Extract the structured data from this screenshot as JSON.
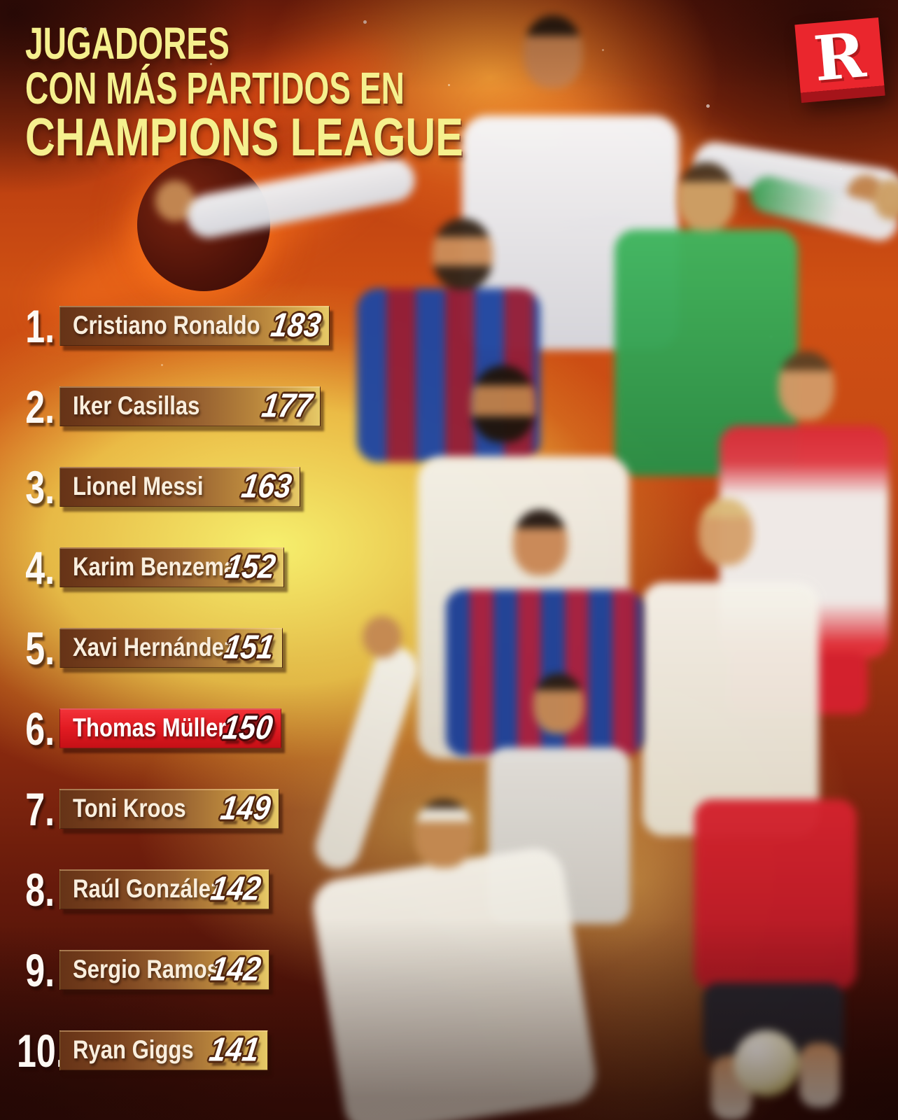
{
  "title": {
    "lines": [
      "JUGADORES",
      "CON MÁS PARTIDOS EN",
      "CHAMPIONS LEAGUE"
    ]
  },
  "logo": {
    "letter": "R",
    "brand_color": "#ea262d"
  },
  "colors": {
    "title_yellow": "#f5f08e",
    "bar_brown_dark": "#663317",
    "bar_gold": "#d3a74d",
    "highlight_red": "#e21b22",
    "rank_white": "#fdf9f4",
    "number_outline": "#50250e"
  },
  "ranking": [
    {
      "rank_label": "1.",
      "name": "Cristiano Ronaldo",
      "matches": 183,
      "highlighted": false
    },
    {
      "rank_label": "2.",
      "name": "Iker Casillas",
      "matches": 177,
      "highlighted": false
    },
    {
      "rank_label": "3.",
      "name": "Lionel Messi",
      "matches": 163,
      "highlighted": false
    },
    {
      "rank_label": "4.",
      "name": "Karim Benzema",
      "matches": 152,
      "highlighted": false
    },
    {
      "rank_label": "5.",
      "name": "Xavi Hernández",
      "matches": 151,
      "highlighted": false
    },
    {
      "rank_label": "6.",
      "name": "Thomas Müller",
      "matches": 150,
      "highlighted": true
    },
    {
      "rank_label": "7.",
      "name": "Toni Kroos",
      "matches": 149,
      "highlighted": false
    },
    {
      "rank_label": "8.",
      "name": "Raúl González",
      "matches": 142,
      "highlighted": false
    },
    {
      "rank_label": "9.",
      "name": "Sergio Ramos",
      "matches": 142,
      "highlighted": false
    },
    {
      "rank_label": "10.",
      "name": "Ryan Giggs",
      "matches": 141,
      "highlighted": false
    }
  ],
  "chart_data": {
    "type": "bar",
    "orientation": "horizontal",
    "title": "JUGADORES CON MÁS PARTIDOS EN CHAMPIONS LEAGUE",
    "categories": [
      "Cristiano Ronaldo",
      "Iker Casillas",
      "Lionel Messi",
      "Karim Benzema",
      "Xavi Hernández",
      "Thomas Müller",
      "Toni Kroos",
      "Raúl González",
      "Sergio Ramos",
      "Ryan Giggs"
    ],
    "values": [
      183,
      177,
      163,
      152,
      151,
      150,
      149,
      142,
      142,
      141
    ],
    "value_labels_position": "bar-end",
    "rank_labels": [
      "1.",
      "2.",
      "3.",
      "4.",
      "5.",
      "6.",
      "7.",
      "8.",
      "9.",
      "10."
    ],
    "highlighted_category": "Thomas Müller",
    "highlight_color": "#e21b22",
    "legend": false,
    "grid": false
  }
}
